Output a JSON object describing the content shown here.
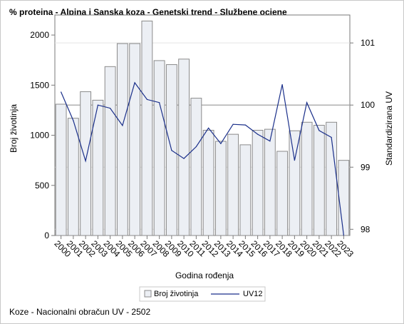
{
  "title": "% proteina - Alpina i Sanska koza - Genetski trend - Službene ocjene",
  "footnote": "Koze - Nacionalni obračun UV - 2502",
  "chart_data": {
    "type": "bar",
    "categories": [
      "2000",
      "2001",
      "2002",
      "2003",
      "2004",
      "2005",
      "2006",
      "2007",
      "2008",
      "2009",
      "2010",
      "2011",
      "2012",
      "2013",
      "2014",
      "2015",
      "2016",
      "2017",
      "2018",
      "2019",
      "2020",
      "2021",
      "2022",
      "2023"
    ],
    "series": [
      {
        "name": "Broj životinja",
        "axis": "left",
        "type": "bar",
        "values": [
          1310,
          1170,
          1435,
          1350,
          1685,
          1915,
          1915,
          2140,
          1745,
          1705,
          1760,
          1370,
          1050,
          940,
          1010,
          905,
          1050,
          1060,
          840,
          1045,
          1130,
          1100,
          1130,
          750
        ]
      },
      {
        "name": "UV12",
        "axis": "right",
        "type": "line",
        "values": [
          100.21,
          99.75,
          99.1,
          100.0,
          99.95,
          99.67,
          100.36,
          100.09,
          100.04,
          99.27,
          99.14,
          99.33,
          99.63,
          99.38,
          99.69,
          99.68,
          99.53,
          99.42,
          100.33,
          99.11,
          100.04,
          99.59,
          99.48,
          97.9
        ]
      }
    ],
    "xlabel": "Godina rođenja",
    "ylabel": "Broj životinja",
    "y2label": "Standardizirana UV",
    "ylim": [
      0,
      2200
    ],
    "yticks": [
      0,
      500,
      1000,
      1500,
      2000
    ],
    "y2lim": [
      97.9,
      101.45
    ],
    "y2ticks": [
      98,
      99,
      100,
      101
    ],
    "reference_line_y2": 100,
    "colors": {
      "bar_fill": "#eceff4",
      "bar_stroke": "#8b8b8b",
      "line": "#1a2f8a",
      "axis": "#7a7a7a",
      "refline": "#9a9a9a"
    },
    "legend_position": "bottom"
  }
}
